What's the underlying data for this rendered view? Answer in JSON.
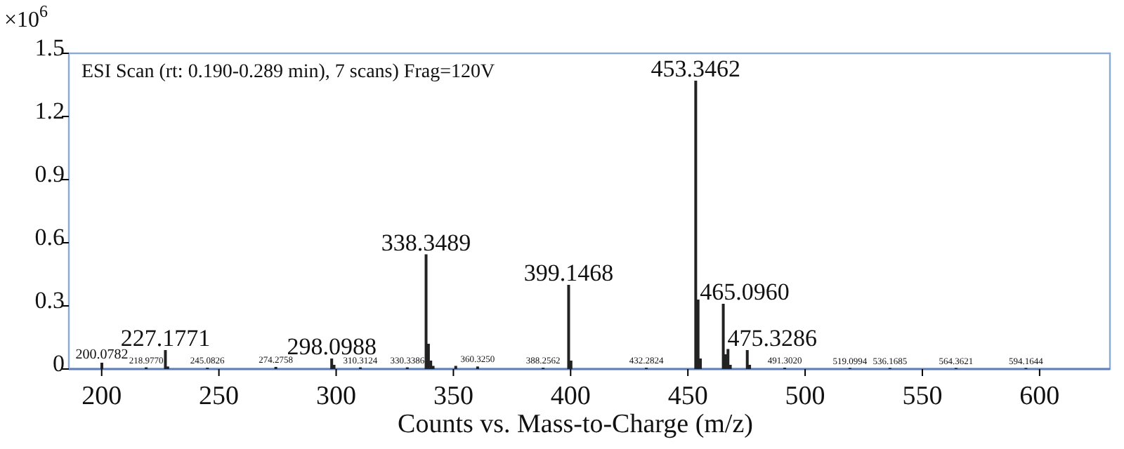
{
  "chart_data": {
    "type": "bar",
    "title": "ESI Scan (rt: 0.190-0.289 min), 7 scans) Frag=120V",
    "xlabel": "Counts vs. Mass-to-Charge (m/z)",
    "ylabel": "×10$^{6}$",
    "x": [
      200.0782,
      218.977,
      227.1771,
      228.18,
      245.0826,
      274.2758,
      298.0988,
      299.1,
      310.3124,
      330.3386,
      338.3489,
      339.35,
      340.35,
      341.35,
      351.0,
      360.325,
      388.2562,
      399.1468,
      400.15,
      432.2824,
      453.3462,
      454.35,
      455.35,
      465.096,
      466.1,
      467.1,
      468.1,
      475.3286,
      476.33,
      491.302,
      519.0994,
      536.1685,
      564.3621,
      594.1644
    ],
    "values": [
      0.03,
      0.008,
      0.09,
      0.012,
      0.006,
      0.01,
      0.05,
      0.02,
      0.008,
      0.008,
      0.545,
      0.12,
      0.04,
      0.015,
      0.015,
      0.012,
      0.006,
      0.4,
      0.04,
      0.006,
      1.37,
      0.33,
      0.05,
      0.31,
      0.07,
      0.095,
      0.02,
      0.09,
      0.02,
      0.006,
      0.005,
      0.005,
      0.005,
      0.005
    ],
    "color": "#222222",
    "xlim": [
      186,
      630
    ],
    "xticks": [
      200,
      250,
      300,
      350,
      400,
      450,
      500,
      550,
      600
    ],
    "ylim": [
      0,
      1.5
    ],
    "yticks": [
      0,
      0.3,
      0.6,
      0.9,
      1.2,
      1.5
    ],
    "annotations": [
      {
        "text": "200.0782",
        "x": 200.0782,
        "y": 0.03
      },
      {
        "text": "218.9770",
        "x": 218.977,
        "y": 0.008
      },
      {
        "text": "227.1771",
        "x": 227.1771,
        "y": 0.09
      },
      {
        "text": "245.0826",
        "x": 245.0826,
        "y": 0.006
      },
      {
        "text": "274.2758",
        "x": 274.2758,
        "y": 0.01
      },
      {
        "text": "298.0988",
        "x": 298.0988,
        "y": 0.05
      },
      {
        "text": "310.3124",
        "x": 310.3124,
        "y": 0.008
      },
      {
        "text": "330.3386",
        "x": 330.3386,
        "y": 0.008
      },
      {
        "text": "338.3489",
        "x": 338.3489,
        "y": 0.545
      },
      {
        "text": "360.3250",
        "x": 360.325,
        "y": 0.012
      },
      {
        "text": "388.2562",
        "x": 388.2562,
        "y": 0.006
      },
      {
        "text": "399.1468",
        "x": 399.1468,
        "y": 0.4
      },
      {
        "text": "432.2824",
        "x": 432.2824,
        "y": 0.006
      },
      {
        "text": "453.3462",
        "x": 453.3462,
        "y": 1.37
      },
      {
        "text": "465.0960",
        "x": 465.096,
        "y": 0.31
      },
      {
        "text": "475.3286",
        "x": 475.3286,
        "y": 0.09
      },
      {
        "text": "491.3020",
        "x": 491.302,
        "y": 0.006
      },
      {
        "text": "519.0994",
        "x": 519.0994,
        "y": 0.005
      },
      {
        "text": "536.1685",
        "x": 536.1685,
        "y": 0.005
      },
      {
        "text": "564.3621",
        "x": 564.3621,
        "y": 0.005
      },
      {
        "text": "594.1644",
        "x": 594.1644,
        "y": 0.005
      }
    ]
  }
}
